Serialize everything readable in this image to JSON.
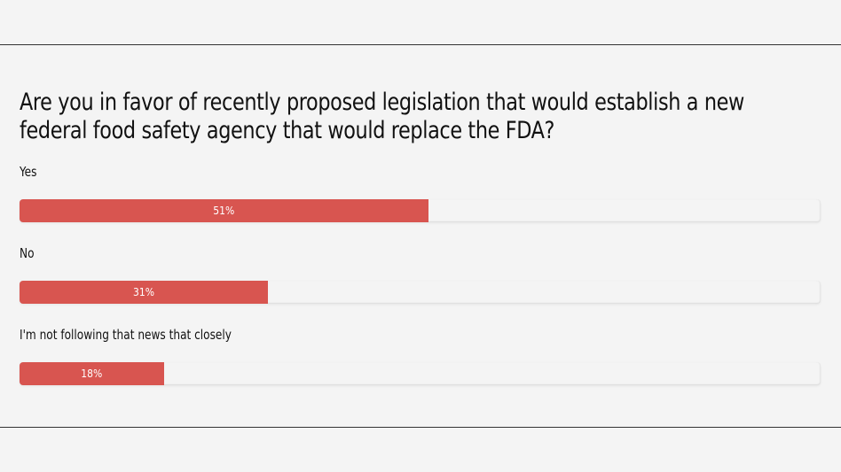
{
  "poll": {
    "question": "Are you in favor of recently proposed legislation that would establish a new federal food safety agency that would replace the FDA?",
    "bar_color": "#d85550",
    "options": [
      {
        "label": "Yes",
        "percent": 51,
        "percent_label": "51%"
      },
      {
        "label": "No",
        "percent": 31,
        "percent_label": "31%"
      },
      {
        "label": "I'm not following that news that closely",
        "percent": 18,
        "percent_label": "18%"
      }
    ]
  }
}
